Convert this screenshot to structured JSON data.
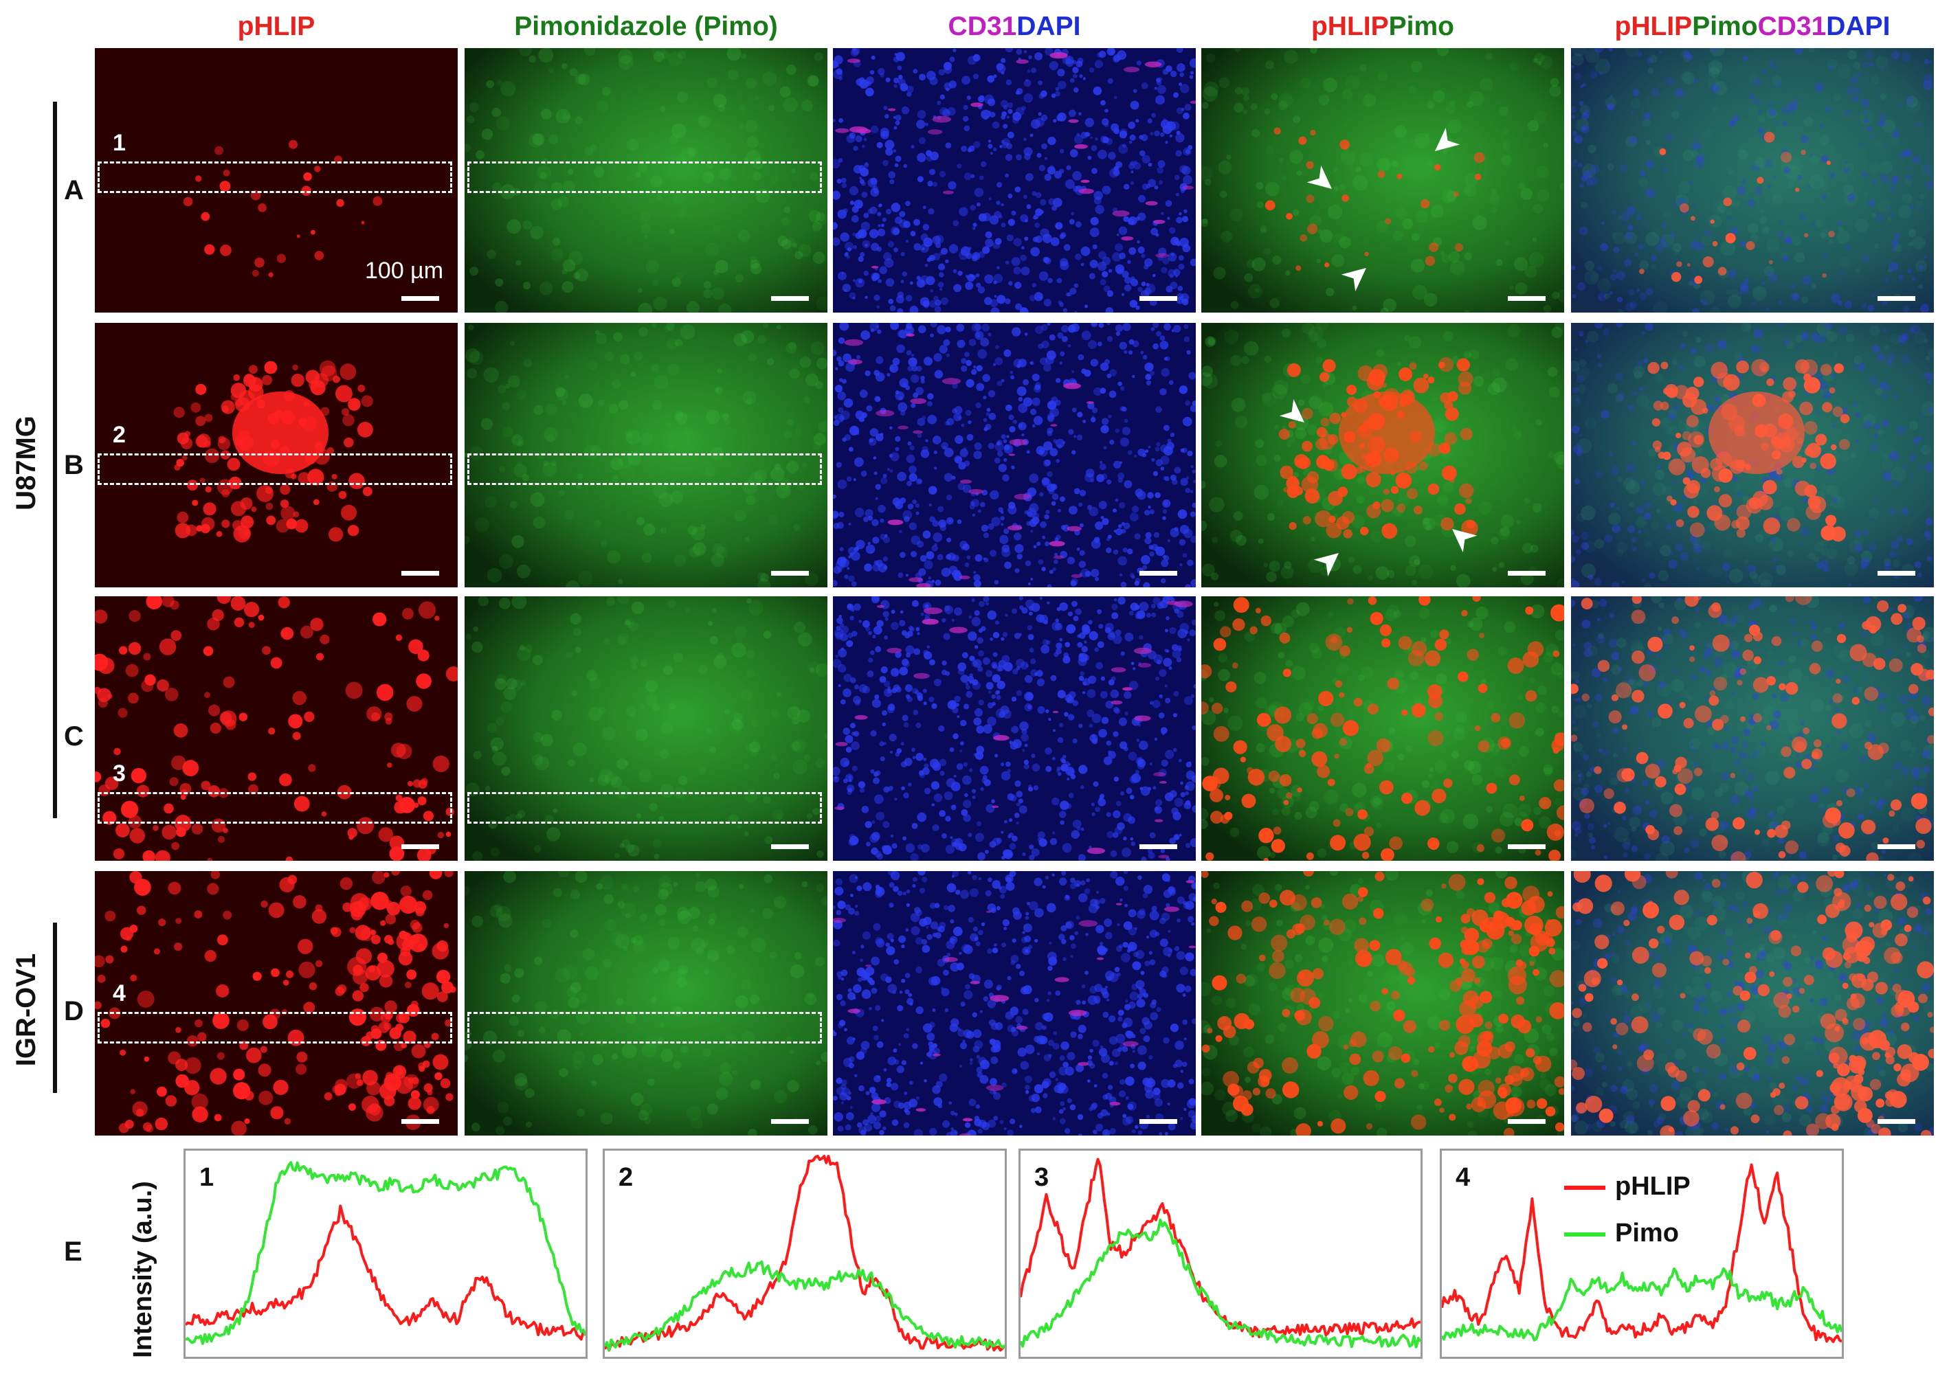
{
  "column_headers": [
    [
      {
        "text": "pHLIP",
        "color": "#e8231f"
      }
    ],
    [
      {
        "text": "Pimonidazole (Pimo)",
        "color": "#187a18"
      }
    ],
    [
      {
        "text": "CD31",
        "color": "#c21fc2"
      },
      {
        "text": "DAPI",
        "color": "#1c2fd6"
      }
    ],
    [
      {
        "text": "pHLIP",
        "color": "#e8231f"
      },
      {
        "text": "Pimo",
        "color": "#187a18"
      }
    ],
    [
      {
        "text": "pHLIP",
        "color": "#e8231f"
      },
      {
        "text": "Pimo",
        "color": "#187a18"
      },
      {
        "text": "CD31",
        "color": "#c21fc2"
      },
      {
        "text": "DAPI",
        "color": "#1c2fd6"
      }
    ]
  ],
  "rows": [
    {
      "letter": "A",
      "roi": "1"
    },
    {
      "letter": "B",
      "roi": "2"
    },
    {
      "letter": "C",
      "roi": "3"
    },
    {
      "letter": "D",
      "roi": "4"
    }
  ],
  "groups": [
    {
      "label": "U87MG"
    },
    {
      "label": "IGR-OV1"
    }
  ],
  "scale_bar_label": "100 µm",
  "profile_section": {
    "letter": "E",
    "ylabel": "Intensity (a.u.)",
    "plots": [
      "1",
      "2",
      "3",
      "4"
    ],
    "legend": [
      {
        "name": "pHLIP",
        "color": "#ff1a1a"
      },
      {
        "name": "Pimo",
        "color": "#33e633"
      }
    ]
  },
  "chart_data": [
    {
      "type": "line",
      "title": "1",
      "xlabel": "",
      "ylabel": "Intensity (a.u.)",
      "ylim": [
        0,
        100
      ],
      "series": [
        {
          "name": "pHLIP",
          "values": [
            15,
            17,
            16,
            18,
            19,
            22,
            21,
            24,
            25,
            30,
            38,
            55,
            72,
            60,
            45,
            30,
            20,
            15,
            18,
            28,
            20,
            16,
            30,
            40,
            28,
            18,
            14,
            12,
            10,
            10,
            9,
            9
          ]
        },
        {
          "name": "Pimo",
          "values": [
            5,
            6,
            8,
            10,
            14,
            30,
            55,
            85,
            96,
            93,
            90,
            88,
            88,
            90,
            86,
            84,
            86,
            82,
            84,
            88,
            86,
            84,
            85,
            88,
            90,
            94,
            88,
            78,
            60,
            35,
            15,
            8
          ]
        }
      ]
    },
    {
      "type": "line",
      "title": "2",
      "xlabel": "",
      "ylabel": "Intensity (a.u.)",
      "ylim": [
        0,
        100
      ],
      "series": [
        {
          "name": "pHLIP",
          "values": [
            3,
            4,
            6,
            8,
            8,
            10,
            12,
            15,
            22,
            30,
            25,
            18,
            25,
            35,
            45,
            80,
            98,
            100,
            95,
            60,
            30,
            38,
            28,
            10,
            5,
            4,
            4,
            3,
            3,
            4,
            3,
            3
          ]
        },
        {
          "name": "Pimo",
          "values": [
            2,
            4,
            6,
            8,
            10,
            14,
            20,
            26,
            32,
            38,
            40,
            42,
            44,
            40,
            36,
            34,
            36,
            34,
            38,
            40,
            40,
            36,
            28,
            20,
            12,
            8,
            6,
            5,
            5,
            4,
            4,
            3
          ]
        }
      ]
    },
    {
      "type": "line",
      "title": "3",
      "xlabel": "",
      "ylabel": "Intensity (a.u.)",
      "ylim": [
        0,
        100
      ],
      "series": [
        {
          "name": "pHLIP",
          "values": [
            30,
            50,
            80,
            60,
            40,
            70,
            100,
            55,
            50,
            60,
            65,
            75,
            60,
            45,
            30,
            20,
            14,
            12,
            10,
            10,
            12,
            10,
            11,
            12,
            10,
            12,
            11,
            12,
            13,
            12,
            14,
            15
          ]
        },
        {
          "name": "Pimo",
          "values": [
            5,
            8,
            12,
            18,
            26,
            35,
            45,
            55,
            60,
            62,
            58,
            66,
            54,
            42,
            30,
            22,
            15,
            12,
            10,
            8,
            7,
            6,
            6,
            6,
            6,
            6,
            5,
            6,
            5,
            6,
            5,
            5
          ]
        }
      ]
    },
    {
      "type": "line",
      "title": "4",
      "xlabel": "",
      "ylabel": "Intensity (a.u.)",
      "ylim": [
        0,
        100
      ],
      "series": [
        {
          "name": "pHLIP",
          "values": [
            25,
            30,
            20,
            15,
            35,
            50,
            30,
            78,
            25,
            12,
            8,
            12,
            25,
            10,
            12,
            10,
            12,
            18,
            10,
            12,
            20,
            12,
            25,
            60,
            98,
            65,
            90,
            55,
            20,
            8,
            6,
            5
          ]
        },
        {
          "name": "Pimo",
          "values": [
            8,
            10,
            12,
            10,
            12,
            10,
            10,
            8,
            12,
            20,
            35,
            30,
            36,
            32,
            38,
            30,
            34,
            30,
            40,
            32,
            38,
            34,
            42,
            30,
            28,
            30,
            24,
            26,
            32,
            22,
            14,
            10
          ]
        }
      ]
    }
  ]
}
